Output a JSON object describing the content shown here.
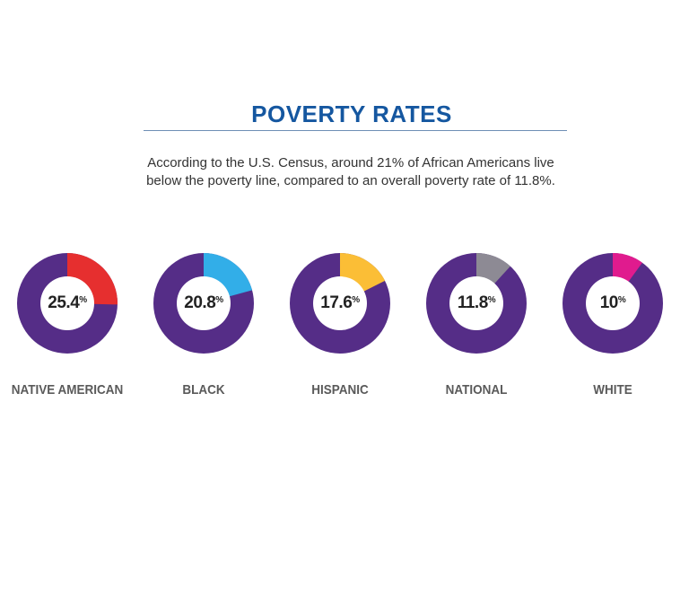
{
  "header": {
    "title": "POVERTY RATES",
    "subtitle_line1": "According to the U.S. Census, around 21% of African Americans live",
    "subtitle_line2": "below the poverty line, compared to an overall poverty rate of 11.8%."
  },
  "chart_data": {
    "type": "pie",
    "variant": "donut",
    "title": "POVERTY RATES",
    "base_color": "#552d87",
    "slices": [
      {
        "label": "NATIVE AMERICAN",
        "value": 25.4,
        "display": "25.4",
        "color": "#e62f2f"
      },
      {
        "label": "BLACK",
        "value": 20.8,
        "display": "20.8",
        "color": "#32aee8"
      },
      {
        "label": "HISPANIC",
        "value": 17.6,
        "display": "17.6",
        "color": "#fbbe36"
      },
      {
        "label": "NATIONAL",
        "value": 11.8,
        "display": "11.8",
        "color": "#8d8a94"
      },
      {
        "label": "WHITE",
        "value": 10,
        "display": "10",
        "color": "#e01b8e"
      }
    ],
    "unit": "%"
  }
}
